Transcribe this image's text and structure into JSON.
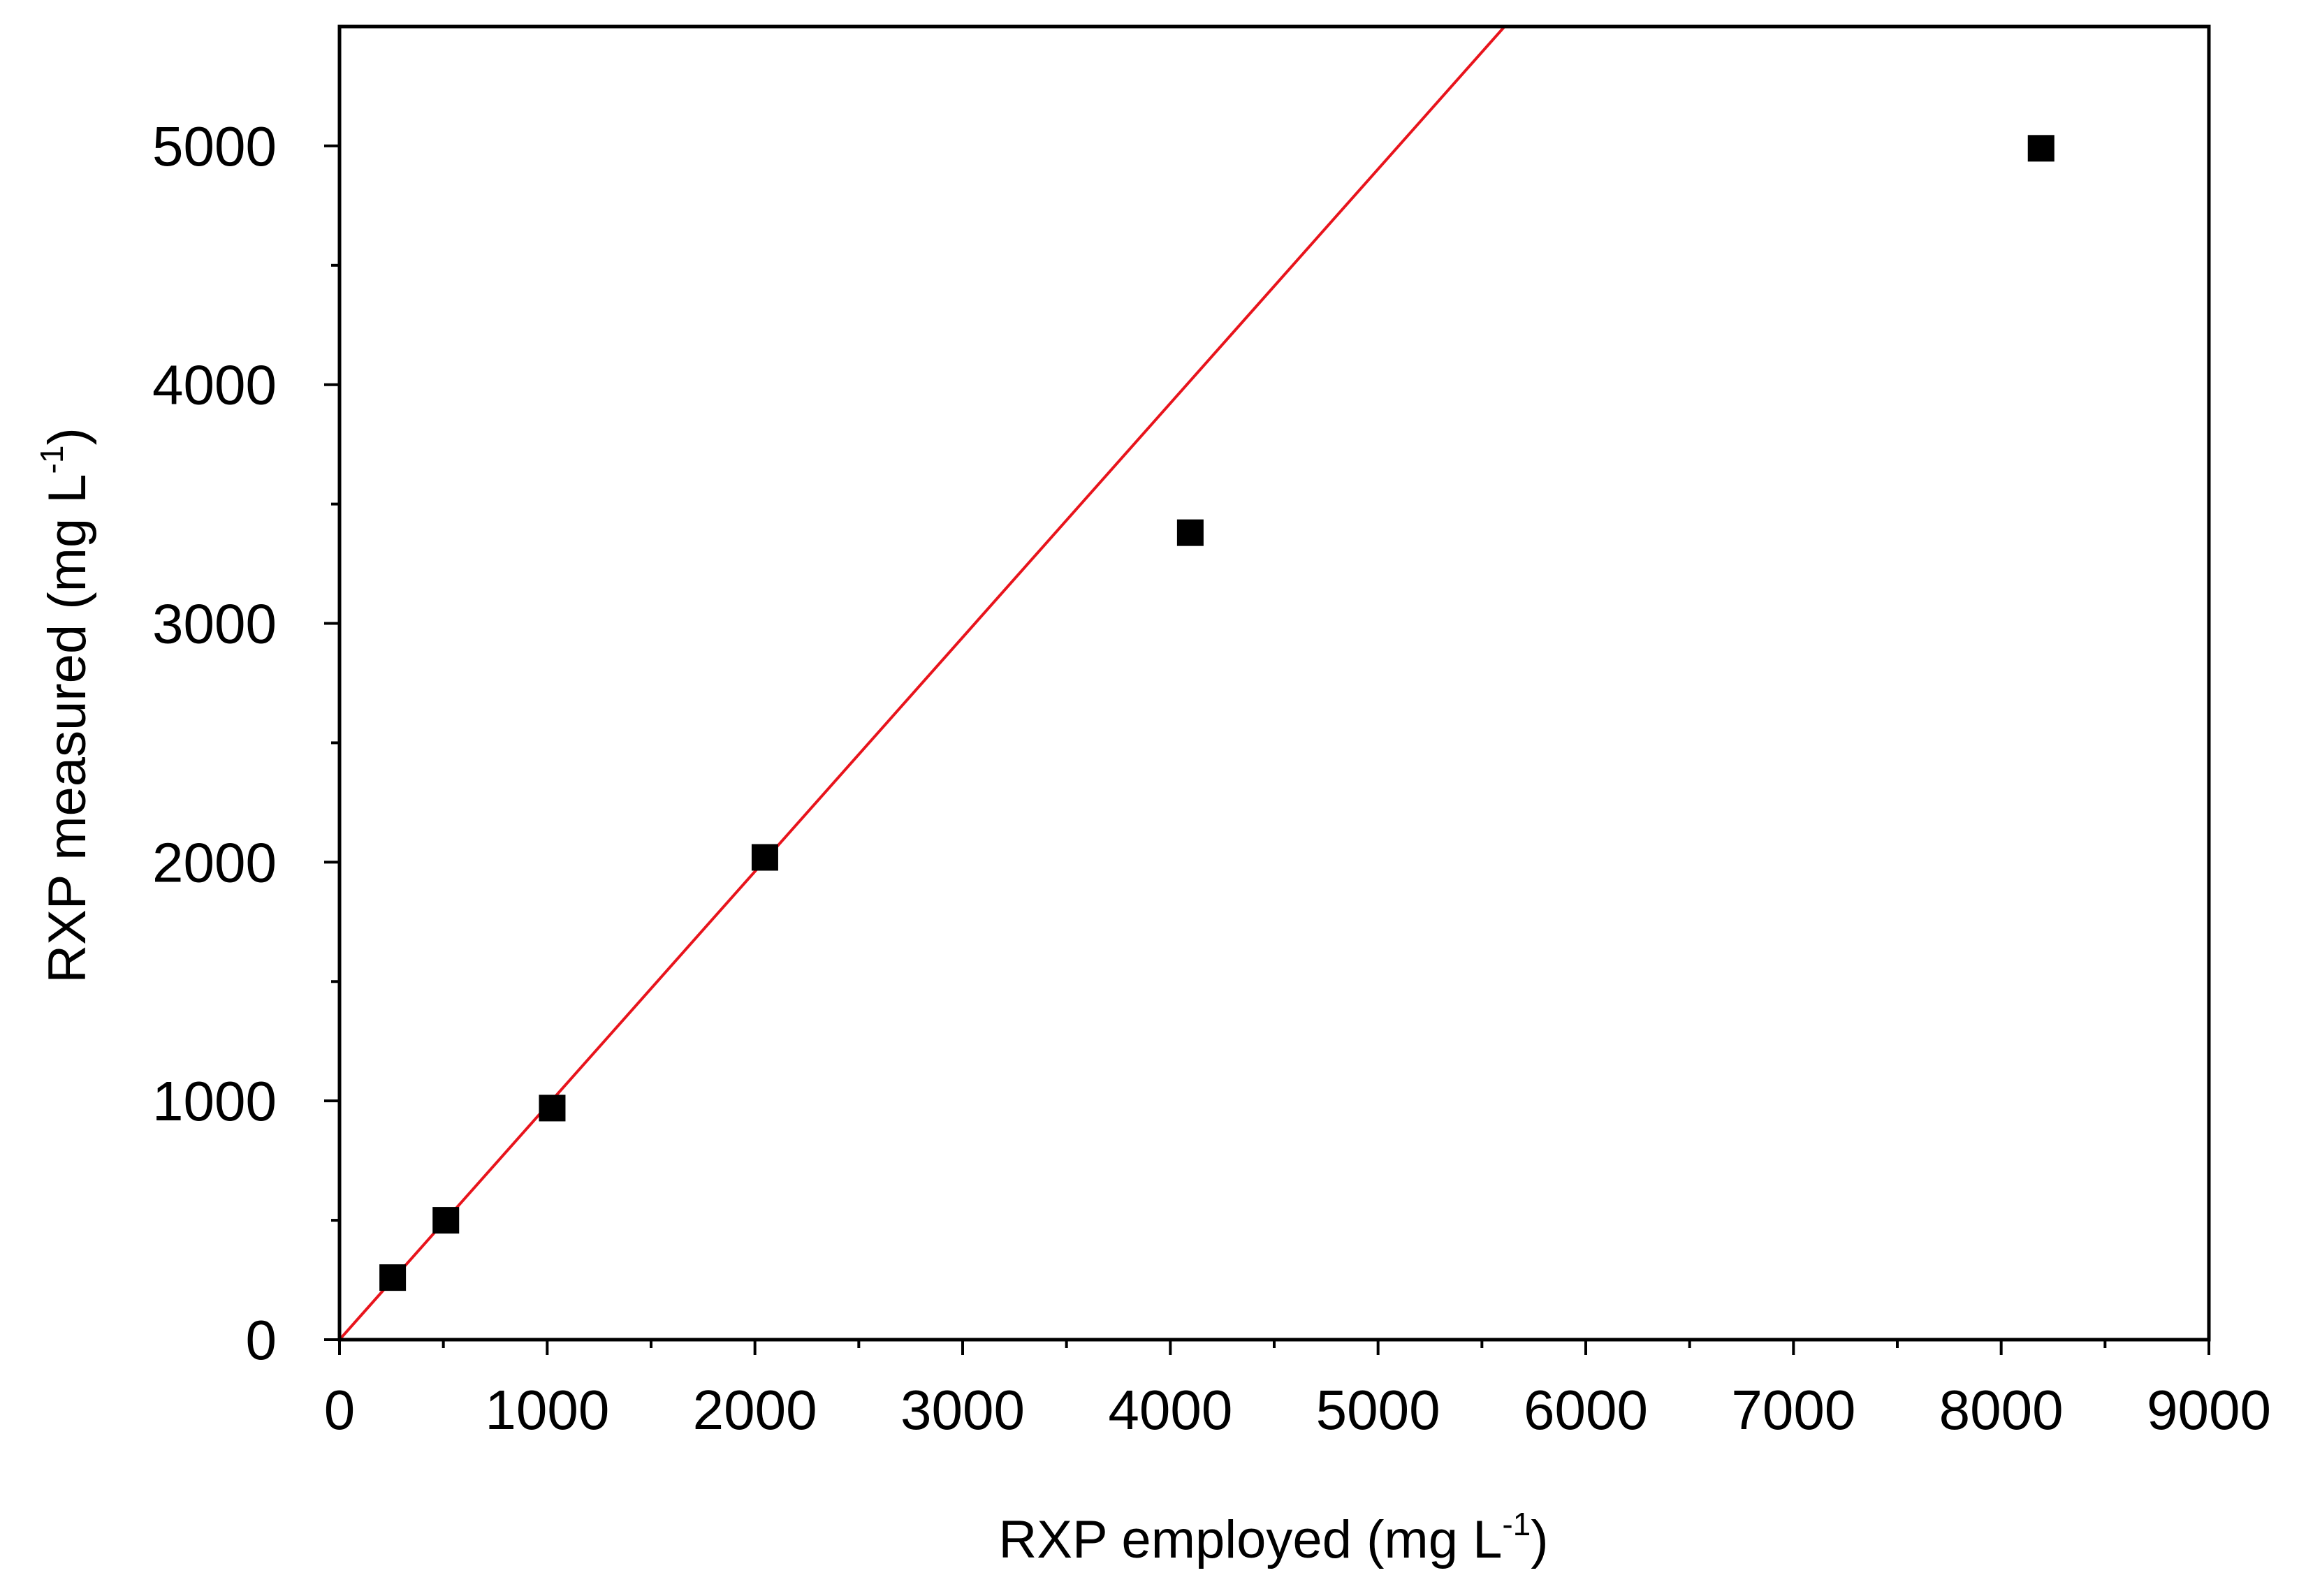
{
  "chart_data": {
    "type": "scatter",
    "x_label": {
      "text": "RXP employed (mg L",
      "superscript": "-1",
      "suffix": ")"
    },
    "y_label": {
      "text": "RXP measured (mg L",
      "superscript": "-1",
      "suffix": ")"
    },
    "series": [
      {
        "type": "scatter",
        "color": "#000000",
        "x": [
          256,
          512,
          1024,
          2048,
          4096,
          8192
        ],
        "values": [
          260,
          500,
          970,
          2020,
          3380,
          4990
        ]
      },
      {
        "type": "line",
        "color": "#e8141c",
        "x": [
          0,
          5609
        ],
        "values": [
          0,
          5500
        ]
      }
    ],
    "xlim": [
      0,
      9000
    ],
    "ylim": [
      0,
      5500
    ],
    "xticks": [
      0,
      1000,
      2000,
      3000,
      4000,
      5000,
      6000,
      7000,
      8000,
      9000
    ],
    "yticks": [
      0,
      1000,
      2000,
      3000,
      4000,
      5000
    ],
    "xminorticks": [
      500,
      1500,
      2500,
      3500,
      4500,
      5500,
      6500,
      7500,
      8500
    ],
    "yminorticks": [
      500,
      1500,
      2500,
      3500,
      4500
    ]
  }
}
